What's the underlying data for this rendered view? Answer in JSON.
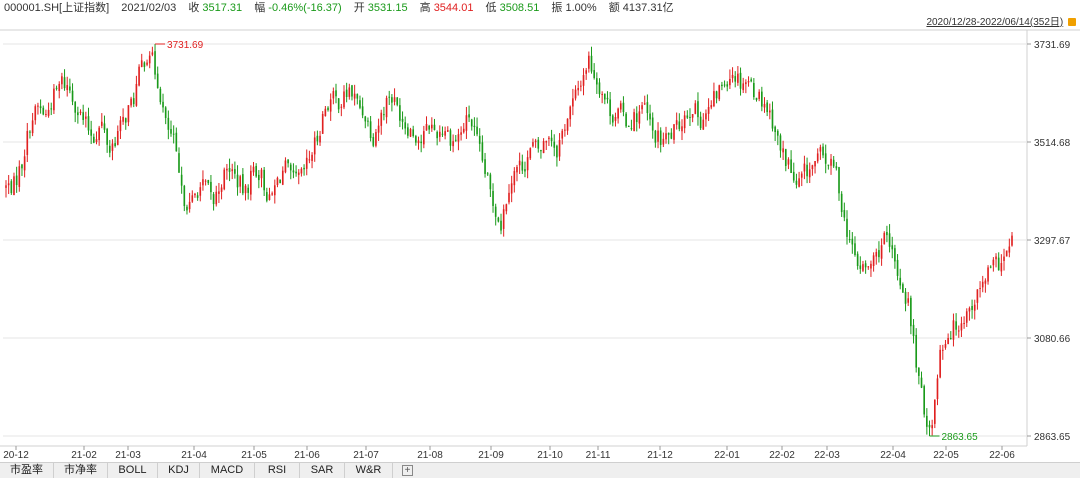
{
  "header": {
    "symbol": "000001.SH[上证指数]",
    "date": "2021/02/03",
    "close_label": "收",
    "close_value": "3517.31",
    "change_label": "幅",
    "change_value": "-0.46%(-16.37)",
    "open_label": "开",
    "open_value": "3531.15",
    "high_label": "高",
    "high_value": "3544.01",
    "low_label": "低",
    "low_value": "3508.51",
    "amplitude_label": "振",
    "amplitude_value": "1.00%",
    "amount_label": "额",
    "amount_value": "4137.31亿"
  },
  "range": {
    "text": "2020/12/28-2022/06/14(352日)",
    "icon": "lock-icon"
  },
  "colors": {
    "up": "#e02020",
    "down": "#1a9a1a",
    "grid": "#e6e6e6",
    "axis": "#d0d0d0"
  },
  "chart_data": {
    "type": "candlestick",
    "title": "",
    "ylim": [
      2863.65,
      3731.69
    ],
    "y_ticks": [
      "3731.69",
      "3514.68",
      "3297.67",
      "3080.66",
      "2863.65"
    ],
    "x_ticks": [
      "20-12",
      "21-02",
      "21-03",
      "21-04",
      "21-05",
      "21-06",
      "21-07",
      "21-08",
      "21-09",
      "21-10",
      "21-11",
      "21-12",
      "22-01",
      "22-02",
      "22-03",
      "22-04",
      "22-05",
      "22-06"
    ],
    "annotations": [
      {
        "label": "3731.69",
        "kind": "high",
        "date": "21-02"
      },
      {
        "label": "2863.65",
        "kind": "low",
        "date": "22-04"
      }
    ],
    "anchors": [
      3415,
      3420,
      3470,
      3560,
      3600,
      3580,
      3625,
      3660,
      3640,
      3590,
      3560,
      3530,
      3560,
      3500,
      3540,
      3580,
      3620,
      3700,
      3730,
      3660,
      3560,
      3520,
      3400,
      3370,
      3410,
      3420,
      3380,
      3430,
      3460,
      3430,
      3400,
      3460,
      3440,
      3380,
      3430,
      3460,
      3430,
      3440,
      3480,
      3530,
      3600,
      3620,
      3610,
      3640,
      3610,
      3580,
      3530,
      3580,
      3630,
      3600,
      3560,
      3540,
      3520,
      3560,
      3540,
      3550,
      3520,
      3540,
      3580,
      3520,
      3450,
      3380,
      3330,
      3420,
      3460,
      3470,
      3510,
      3500,
      3540,
      3500,
      3560,
      3610,
      3660,
      3710,
      3660,
      3620,
      3580,
      3590,
      3560,
      3580,
      3600,
      3540,
      3520,
      3530,
      3550,
      3580,
      3600,
      3570,
      3590,
      3630,
      3660,
      3680,
      3660,
      3660,
      3630,
      3610,
      3570,
      3500,
      3470,
      3410,
      3450,
      3460,
      3490,
      3470,
      3450,
      3340,
      3270,
      3230,
      3230,
      3260,
      3300,
      3260,
      3200,
      3150,
      3020,
      2900,
      2870,
      3050,
      3080,
      3100,
      3120,
      3150,
      3180,
      3220,
      3240,
      3250,
      3290
    ],
    "candles_per_anchor": 3
  },
  "tabs": [
    "市盈率",
    "市净率",
    "BOLL",
    "KDJ",
    "MACD",
    "RSI",
    "SAR",
    "W&R"
  ],
  "add_tab_icon": "plus-icon"
}
